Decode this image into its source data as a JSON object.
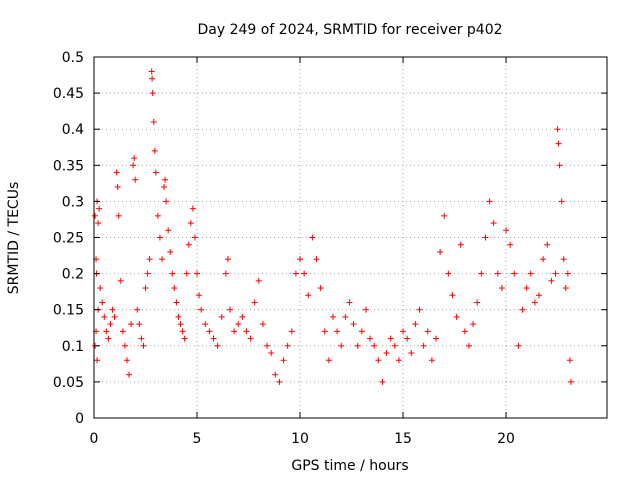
{
  "chart_data": {
    "type": "scatter",
    "title": "Day 249 of 2024, SRMTID for receiver p402",
    "xlabel": "GPS time / hours",
    "ylabel": "SRMTID / TECUs",
    "xlim": [
      0,
      24.9
    ],
    "ylim": [
      0,
      0.5
    ],
    "xticks": [
      0,
      5,
      10,
      15,
      20
    ],
    "xtick_labels": [
      "0",
      "5",
      "10",
      "15",
      "20"
    ],
    "yticks": [
      0,
      0.05,
      0.1,
      0.15,
      0.2,
      0.25,
      0.3,
      0.35,
      0.4,
      0.45,
      0.5
    ],
    "ytick_labels": [
      "0",
      "0.05",
      "0.1",
      "0.15",
      "0.2",
      "0.25",
      "0.3",
      "0.35",
      "0.4",
      "0.45",
      "0.5"
    ],
    "grid": true,
    "marker": "+",
    "series": [
      {
        "name": "SRMTID",
        "color": "#ff0000",
        "points": [
          [
            0.05,
            0.28
          ],
          [
            0.1,
            0.22
          ],
          [
            0.12,
            0.2
          ],
          [
            0.15,
            0.3
          ],
          [
            0.2,
            0.27
          ],
          [
            0.25,
            0.29
          ],
          [
            0.05,
            0.1
          ],
          [
            0.1,
            0.12
          ],
          [
            0.15,
            0.08
          ],
          [
            0.2,
            0.15
          ],
          [
            0.3,
            0.18
          ],
          [
            0.4,
            0.16
          ],
          [
            0.5,
            0.14
          ],
          [
            0.6,
            0.12
          ],
          [
            0.7,
            0.11
          ],
          [
            0.8,
            0.13
          ],
          [
            0.9,
            0.15
          ],
          [
            1.0,
            0.14
          ],
          [
            1.1,
            0.34
          ],
          [
            1.15,
            0.32
          ],
          [
            1.2,
            0.28
          ],
          [
            1.3,
            0.19
          ],
          [
            1.4,
            0.12
          ],
          [
            1.5,
            0.1
          ],
          [
            1.6,
            0.08
          ],
          [
            1.7,
            0.06
          ],
          [
            1.8,
            0.13
          ],
          [
            1.9,
            0.35
          ],
          [
            1.95,
            0.36
          ],
          [
            2.0,
            0.33
          ],
          [
            2.1,
            0.15
          ],
          [
            2.2,
            0.13
          ],
          [
            2.3,
            0.11
          ],
          [
            2.4,
            0.1
          ],
          [
            2.5,
            0.18
          ],
          [
            2.6,
            0.2
          ],
          [
            2.7,
            0.22
          ],
          [
            2.8,
            0.48
          ],
          [
            2.82,
            0.47
          ],
          [
            2.85,
            0.45
          ],
          [
            2.9,
            0.41
          ],
          [
            2.95,
            0.37
          ],
          [
            3.0,
            0.34
          ],
          [
            3.1,
            0.28
          ],
          [
            3.2,
            0.25
          ],
          [
            3.3,
            0.22
          ],
          [
            3.4,
            0.32
          ],
          [
            3.45,
            0.33
          ],
          [
            3.5,
            0.3
          ],
          [
            3.6,
            0.26
          ],
          [
            3.7,
            0.23
          ],
          [
            3.8,
            0.2
          ],
          [
            3.9,
            0.18
          ],
          [
            4.0,
            0.16
          ],
          [
            4.1,
            0.14
          ],
          [
            4.2,
            0.13
          ],
          [
            4.3,
            0.12
          ],
          [
            4.4,
            0.11
          ],
          [
            4.5,
            0.2
          ],
          [
            4.6,
            0.24
          ],
          [
            4.7,
            0.27
          ],
          [
            4.8,
            0.29
          ],
          [
            4.9,
            0.25
          ],
          [
            5.0,
            0.2
          ],
          [
            5.1,
            0.17
          ],
          [
            5.2,
            0.15
          ],
          [
            5.4,
            0.13
          ],
          [
            5.6,
            0.12
          ],
          [
            5.8,
            0.11
          ],
          [
            6.0,
            0.1
          ],
          [
            6.2,
            0.14
          ],
          [
            6.4,
            0.2
          ],
          [
            6.5,
            0.22
          ],
          [
            6.6,
            0.15
          ],
          [
            6.8,
            0.12
          ],
          [
            7.0,
            0.13
          ],
          [
            7.2,
            0.14
          ],
          [
            7.4,
            0.12
          ],
          [
            7.6,
            0.11
          ],
          [
            7.8,
            0.16
          ],
          [
            8.0,
            0.19
          ],
          [
            8.2,
            0.13
          ],
          [
            8.4,
            0.1
          ],
          [
            8.6,
            0.09
          ],
          [
            8.8,
            0.06
          ],
          [
            9.0,
            0.05
          ],
          [
            9.2,
            0.08
          ],
          [
            9.4,
            0.1
          ],
          [
            9.6,
            0.12
          ],
          [
            9.8,
            0.2
          ],
          [
            10.0,
            0.22
          ],
          [
            10.2,
            0.2
          ],
          [
            10.4,
            0.17
          ],
          [
            10.6,
            0.25
          ],
          [
            10.8,
            0.22
          ],
          [
            11.0,
            0.18
          ],
          [
            11.2,
            0.12
          ],
          [
            11.4,
            0.08
          ],
          [
            11.6,
            0.14
          ],
          [
            11.8,
            0.12
          ],
          [
            12.0,
            0.1
          ],
          [
            12.2,
            0.14
          ],
          [
            12.4,
            0.16
          ],
          [
            12.6,
            0.13
          ],
          [
            12.8,
            0.1
          ],
          [
            13.0,
            0.12
          ],
          [
            13.2,
            0.15
          ],
          [
            13.4,
            0.11
          ],
          [
            13.6,
            0.1
          ],
          [
            13.8,
            0.08
          ],
          [
            14.0,
            0.05
          ],
          [
            14.2,
            0.09
          ],
          [
            14.4,
            0.11
          ],
          [
            14.6,
            0.1
          ],
          [
            14.8,
            0.08
          ],
          [
            15.0,
            0.12
          ],
          [
            15.2,
            0.11
          ],
          [
            15.4,
            0.09
          ],
          [
            15.6,
            0.13
          ],
          [
            15.8,
            0.15
          ],
          [
            16.0,
            0.1
          ],
          [
            16.2,
            0.12
          ],
          [
            16.4,
            0.08
          ],
          [
            16.6,
            0.11
          ],
          [
            16.8,
            0.23
          ],
          [
            17.0,
            0.28
          ],
          [
            17.2,
            0.2
          ],
          [
            17.4,
            0.17
          ],
          [
            17.6,
            0.14
          ],
          [
            17.8,
            0.24
          ],
          [
            18.0,
            0.12
          ],
          [
            18.2,
            0.1
          ],
          [
            18.4,
            0.13
          ],
          [
            18.6,
            0.16
          ],
          [
            18.8,
            0.2
          ],
          [
            19.0,
            0.25
          ],
          [
            19.2,
            0.3
          ],
          [
            19.4,
            0.27
          ],
          [
            19.6,
            0.2
          ],
          [
            19.8,
            0.18
          ],
          [
            20.0,
            0.26
          ],
          [
            20.2,
            0.24
          ],
          [
            20.4,
            0.2
          ],
          [
            20.6,
            0.1
          ],
          [
            20.8,
            0.15
          ],
          [
            21.0,
            0.18
          ],
          [
            21.2,
            0.2
          ],
          [
            21.4,
            0.16
          ],
          [
            21.6,
            0.17
          ],
          [
            21.8,
            0.22
          ],
          [
            22.0,
            0.24
          ],
          [
            22.2,
            0.19
          ],
          [
            22.4,
            0.2
          ],
          [
            22.5,
            0.4
          ],
          [
            22.55,
            0.38
          ],
          [
            22.6,
            0.35
          ],
          [
            22.7,
            0.3
          ],
          [
            22.8,
            0.22
          ],
          [
            22.9,
            0.18
          ],
          [
            23.0,
            0.2
          ],
          [
            23.1,
            0.08
          ],
          [
            23.15,
            0.05
          ]
        ]
      }
    ]
  }
}
